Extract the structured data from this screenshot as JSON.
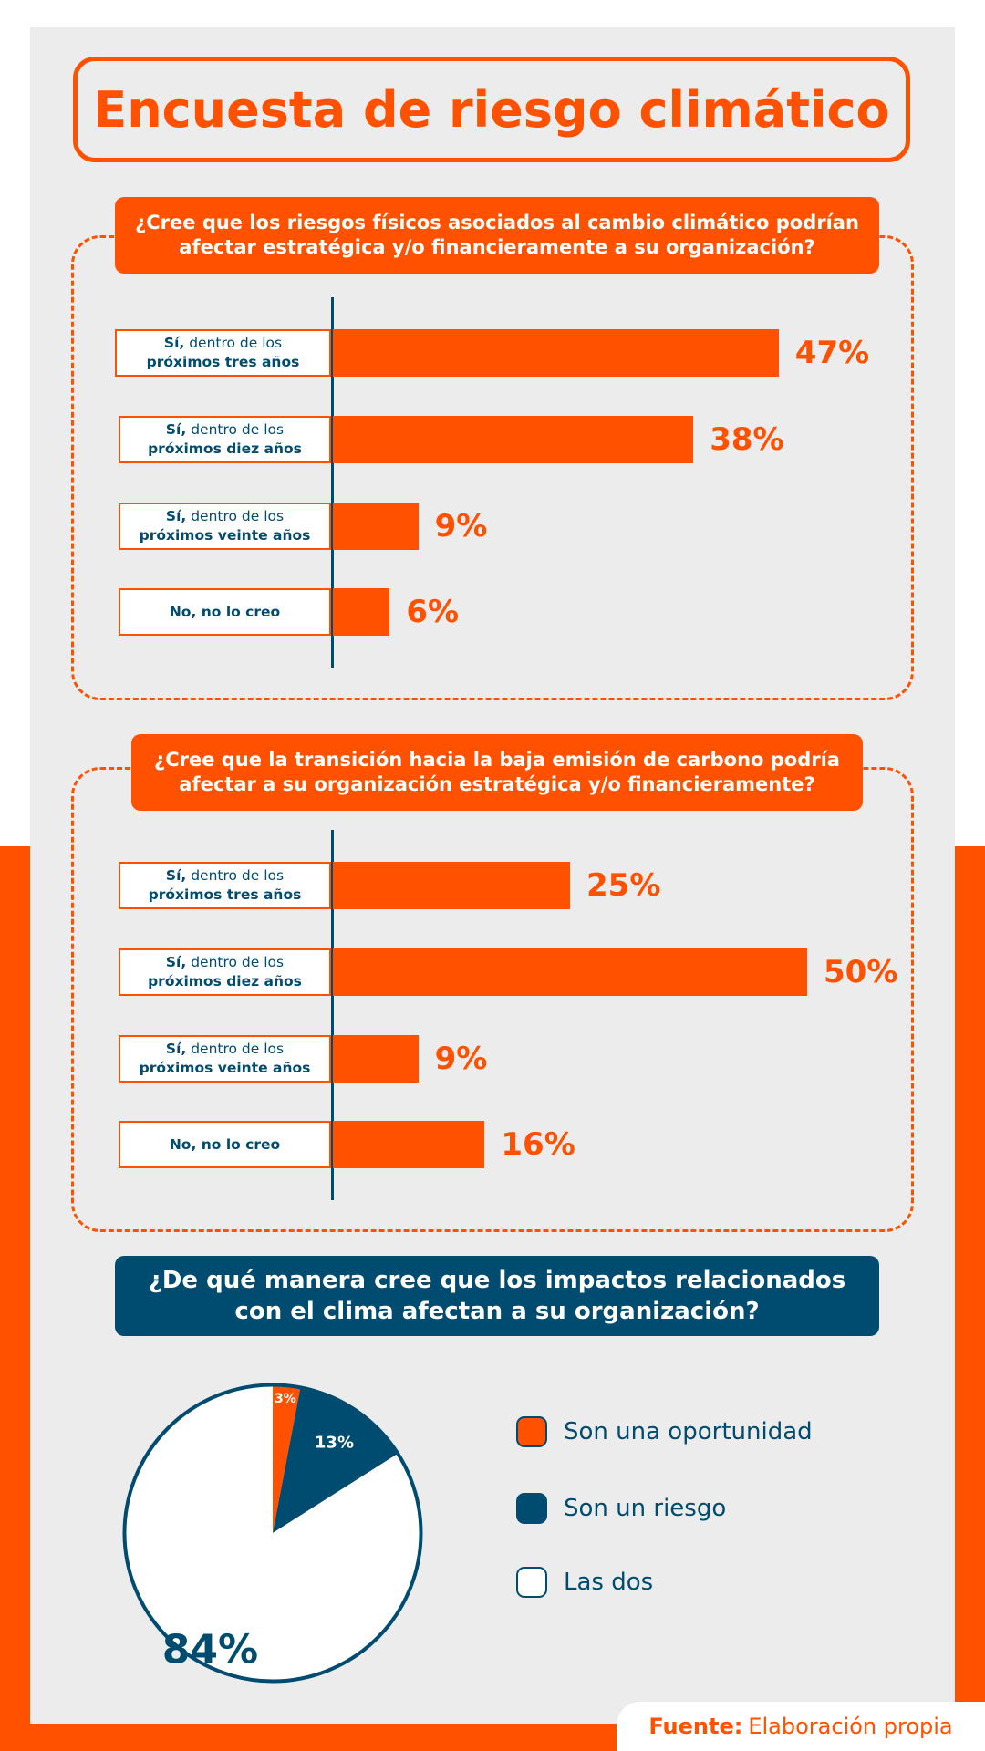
{
  "title": "Encuesta de riesgo climático",
  "colors": {
    "orange": "#ff5100",
    "navy": "#004c70",
    "panel": "#ececec",
    "white": "#ffffff"
  },
  "source": {
    "label": "Fuente:",
    "text": "Elaboración propia"
  },
  "chart_data": [
    {
      "type": "bar",
      "orientation": "horizontal",
      "title": "¿Cree que los riesgos físicos asociados al cambio climático podrían afectar estratégica y/o financieramente a su organización?",
      "categories": [
        {
          "bold": "Sí,",
          "rest": " dentro de los",
          "line2": "próximos tres años"
        },
        {
          "bold": "Sí,",
          "rest": " dentro de los",
          "line2": "próximos diez años"
        },
        {
          "bold": "Sí,",
          "rest": " dentro de los",
          "line2": "próximos veinte años"
        },
        {
          "bold": "No, no lo creo",
          "rest": "",
          "line2": ""
        }
      ],
      "values": [
        47,
        38,
        9,
        6
      ],
      "value_labels": [
        "47%",
        "38%",
        "9%",
        "6%"
      ],
      "unit": "%"
    },
    {
      "type": "bar",
      "orientation": "horizontal",
      "title": "¿Cree que la transición hacia la baja emisión de carbono podría afectar a su organización estratégica y/o financieramente?",
      "categories": [
        {
          "bold": "Sí,",
          "rest": " dentro de los",
          "line2": "próximos tres años"
        },
        {
          "bold": "Sí,",
          "rest": " dentro de los",
          "line2": "próximos diez años"
        },
        {
          "bold": "Sí,",
          "rest": " dentro de los",
          "line2": "próximos veinte años"
        },
        {
          "bold": "No, no lo creo",
          "rest": "",
          "line2": ""
        }
      ],
      "values": [
        25,
        50,
        9,
        16
      ],
      "value_labels": [
        "25%",
        "50%",
        "9%",
        "16%"
      ],
      "unit": "%"
    },
    {
      "type": "pie",
      "title": "¿De qué manera cree que los impactos relacionados con el clima afectan a su organización?",
      "slices": [
        {
          "name": "Son una oportunidad",
          "value": 3,
          "label": "3%",
          "color": "#ff5100"
        },
        {
          "name": "Son un riesgo",
          "value": 13,
          "label": "13%",
          "color": "#004c70"
        },
        {
          "name": "Las dos",
          "value": 84,
          "label": "84%",
          "color": "#ffffff"
        }
      ],
      "legend": "right"
    }
  ]
}
